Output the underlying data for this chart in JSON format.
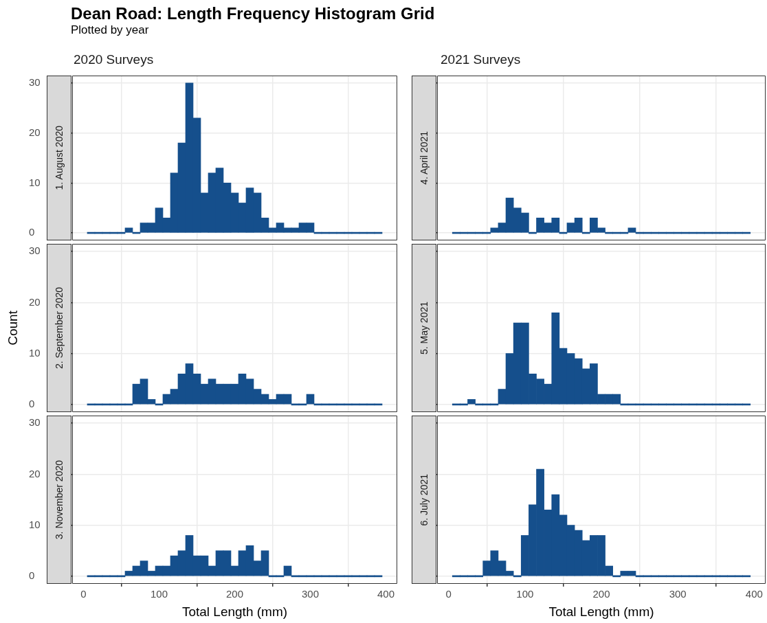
{
  "chart_data": [
    {
      "type": "histogram",
      "title": "1. August 2020",
      "subtitle": "2020 Surveys",
      "annotations": [
        "Dean Road: Length Frequency Histogram Grid",
        "Plotted by year"
      ],
      "color": "#154f8c",
      "grid": true,
      "tick_labels": "y",
      "bins": [
        5,
        15,
        25,
        35,
        45,
        55,
        65,
        75,
        85,
        95,
        105,
        115,
        125,
        135,
        145,
        155,
        165,
        175,
        185,
        195,
        205,
        215,
        225,
        235,
        245,
        255,
        265,
        275,
        285,
        295,
        305,
        315,
        325,
        335,
        345,
        355,
        365,
        375,
        385,
        395
      ],
      "values": [
        0,
        0,
        0,
        0,
        0,
        1,
        0,
        2,
        2,
        5,
        3,
        12,
        18,
        30,
        23,
        8,
        12,
        13,
        10,
        8,
        6,
        9,
        8,
        3,
        1,
        2,
        1,
        1,
        2,
        2,
        0,
        0,
        0,
        0,
        0,
        0,
        0,
        0,
        0
      ],
      "xlim": [
        -15,
        415
      ],
      "xticks": [
        0,
        100,
        200,
        300,
        400
      ],
      "ylim": [
        -1.5,
        31.5
      ],
      "yticks": [
        0,
        10,
        20,
        30
      ]
    },
    {
      "type": "histogram",
      "title": "4. April 2021",
      "subtitle": "2021 Surveys",
      "color": "#154f8c",
      "grid": true,
      "tick_labels": false,
      "bins": [
        5,
        15,
        25,
        35,
        45,
        55,
        65,
        75,
        85,
        95,
        105,
        115,
        125,
        135,
        145,
        155,
        165,
        175,
        185,
        195,
        205,
        215,
        225,
        235,
        245,
        255,
        265,
        275,
        285,
        295,
        305,
        315,
        325,
        335,
        345,
        355,
        365,
        375,
        385,
        395
      ],
      "values": [
        0,
        0,
        0,
        0,
        0,
        1,
        2,
        7,
        5,
        4,
        0,
        3,
        2,
        3,
        0,
        2,
        3,
        0,
        3,
        1,
        0,
        0,
        0,
        1,
        0,
        0,
        0,
        0,
        0,
        0,
        0,
        0,
        0,
        0,
        0,
        0,
        0,
        0,
        0
      ],
      "xlim": [
        -15,
        415
      ],
      "xticks": [
        0,
        100,
        200,
        300,
        400
      ],
      "ylim": [
        -1.5,
        31.5
      ],
      "yticks": [
        0,
        10,
        20,
        30
      ]
    },
    {
      "type": "histogram",
      "title": "2. September 2020",
      "ylabel": "Count",
      "color": "#154f8c",
      "grid": true,
      "tick_labels": "y",
      "bins": [
        5,
        15,
        25,
        35,
        45,
        55,
        65,
        75,
        85,
        95,
        105,
        115,
        125,
        135,
        145,
        155,
        165,
        175,
        185,
        195,
        205,
        215,
        225,
        235,
        245,
        255,
        265,
        275,
        285,
        295,
        305,
        315,
        325,
        335,
        345,
        355,
        365,
        375,
        385,
        395
      ],
      "values": [
        0,
        0,
        0,
        0,
        0,
        0,
        4,
        5,
        1,
        0,
        2,
        3,
        6,
        8,
        6,
        4,
        5,
        4,
        4,
        4,
        6,
        5,
        3,
        2,
        1,
        2,
        2,
        0,
        0,
        2,
        0,
        0,
        0,
        0,
        0,
        0,
        0,
        0,
        0
      ],
      "xlim": [
        -15,
        415
      ],
      "xticks": [
        0,
        100,
        200,
        300,
        400
      ],
      "ylim": [
        -1.5,
        31.5
      ],
      "yticks": [
        0,
        10,
        20,
        30
      ]
    },
    {
      "type": "histogram",
      "title": "5. May 2021",
      "color": "#154f8c",
      "grid": true,
      "tick_labels": false,
      "bins": [
        5,
        15,
        25,
        35,
        45,
        55,
        65,
        75,
        85,
        95,
        105,
        115,
        125,
        135,
        145,
        155,
        165,
        175,
        185,
        195,
        205,
        215,
        225,
        235,
        245,
        255,
        265,
        275,
        285,
        295,
        305,
        315,
        325,
        335,
        345,
        355,
        365,
        375,
        385,
        395
      ],
      "values": [
        0,
        0,
        1,
        0,
        0,
        0,
        3,
        10,
        16,
        16,
        6,
        5,
        4,
        18,
        11,
        10,
        9,
        7,
        8,
        2,
        2,
        2,
        0,
        0,
        0,
        0,
        0,
        0,
        0,
        0,
        0,
        0,
        0,
        0,
        0,
        0,
        0,
        0,
        0
      ],
      "xlim": [
        -15,
        415
      ],
      "xticks": [
        0,
        100,
        200,
        300,
        400
      ],
      "ylim": [
        -1.5,
        31.5
      ],
      "yticks": [
        0,
        10,
        20,
        30
      ]
    },
    {
      "type": "histogram",
      "title": "3. November 2020",
      "xlabel": "Total Length (mm)",
      "color": "#154f8c",
      "grid": true,
      "bins": [
        5,
        15,
        25,
        35,
        45,
        55,
        65,
        75,
        85,
        95,
        105,
        115,
        125,
        135,
        145,
        155,
        165,
        175,
        185,
        195,
        205,
        215,
        225,
        235,
        245,
        255,
        265,
        275,
        285,
        295,
        305,
        315,
        325,
        335,
        345,
        355,
        365,
        375,
        385,
        395
      ],
      "values": [
        0,
        0,
        0,
        0,
        0,
        1,
        2,
        3,
        1,
        2,
        2,
        4,
        5,
        8,
        4,
        4,
        2,
        5,
        5,
        2,
        5,
        6,
        3,
        5,
        0,
        0,
        2,
        0,
        0,
        0,
        0,
        0,
        0,
        0,
        0,
        0,
        0,
        0,
        0
      ],
      "xlim": [
        -15,
        415
      ],
      "xticks": [
        0,
        100,
        200,
        300,
        400
      ],
      "ylim": [
        -1.5,
        31.5
      ],
      "yticks": [
        0,
        10,
        20,
        30
      ]
    },
    {
      "type": "histogram",
      "title": "6. July 2021",
      "xlabel": "Total Length (mm)",
      "color": "#154f8c",
      "grid": true,
      "tick_labels": "x",
      "bins": [
        5,
        15,
        25,
        35,
        45,
        55,
        65,
        75,
        85,
        95,
        105,
        115,
        125,
        135,
        145,
        155,
        165,
        175,
        185,
        195,
        205,
        215,
        225,
        235,
        245,
        255,
        265,
        275,
        285,
        295,
        305,
        315,
        325,
        335,
        345,
        355,
        365,
        375,
        385,
        395
      ],
      "values": [
        0,
        0,
        0,
        0,
        3,
        5,
        3,
        1,
        0,
        8,
        14,
        21,
        13,
        16,
        12,
        10,
        9,
        7,
        8,
        8,
        2,
        0,
        1,
        1,
        0,
        0,
        0,
        0,
        0,
        0,
        0,
        0,
        0,
        0,
        0,
        0,
        0,
        0,
        0
      ],
      "xlim": [
        -15,
        415
      ],
      "xticks": [
        0,
        100,
        200,
        300,
        400
      ],
      "ylim": [
        -1.5,
        31.5
      ],
      "yticks": [
        0,
        10,
        20,
        30
      ]
    }
  ]
}
